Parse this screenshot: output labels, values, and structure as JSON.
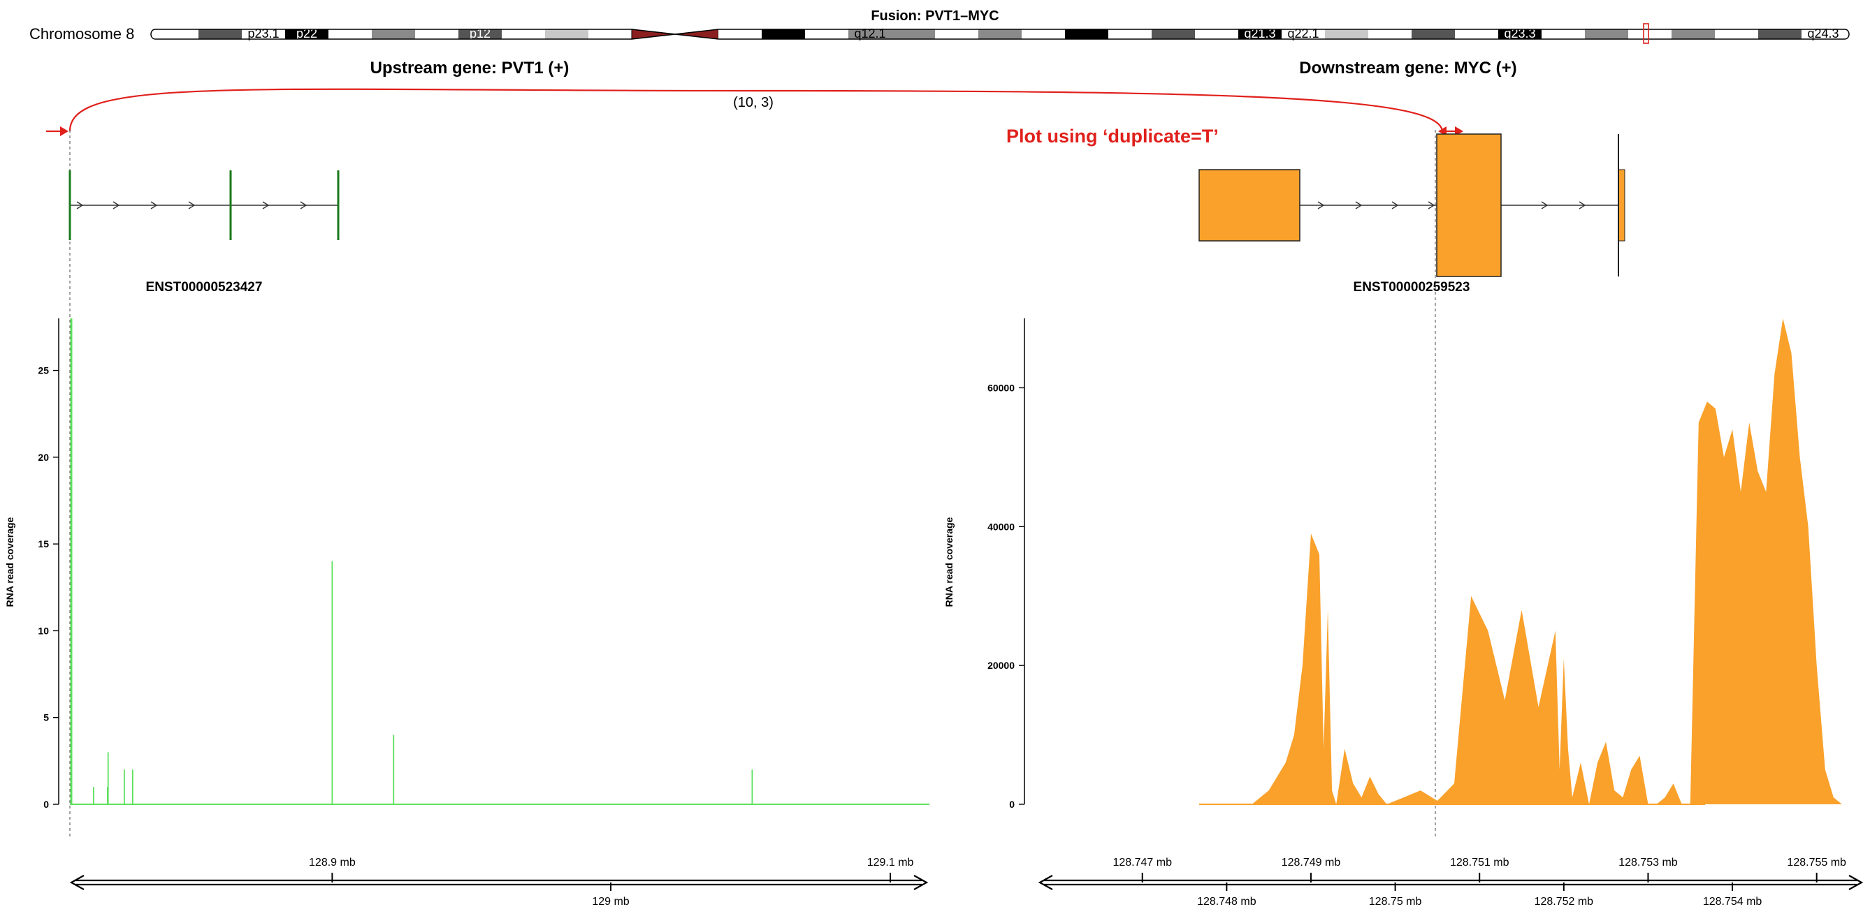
{
  "figure": {
    "fusion_title": "Fusion: PVT1–MYC",
    "chromosome_label": "Chromosome 8",
    "upstream_title": "Upstream gene: PVT1 (+)",
    "downstream_title": "Downstream gene: MYC (+)",
    "junction_label": "(10, 3)",
    "annotation": "Plot using ‘duplicate=T’",
    "upstream_transcript": "ENST00000523427",
    "downstream_transcript": "ENST00000259523",
    "colors": {
      "upstream": "#1a7a1a",
      "upstream_coverage": "#5ee05e",
      "downstream": "#f9a12b",
      "fusion_arc": "#e0201b",
      "centromere": "#8b1f1f"
    }
  },
  "ideogram": {
    "bands": [
      {
        "label": "",
        "stain": "white"
      },
      {
        "label": "",
        "stain": "gpos75"
      },
      {
        "label": "p23.1",
        "stain": "white"
      },
      {
        "label": "p22",
        "stain": "gpos100"
      },
      {
        "label": "",
        "stain": "white"
      },
      {
        "label": "",
        "stain": "gpos50"
      },
      {
        "label": "",
        "stain": "white"
      },
      {
        "label": "p12",
        "stain": "gpos75"
      },
      {
        "label": "",
        "stain": "white"
      },
      {
        "label": "",
        "stain": "gpos25"
      },
      {
        "label": "",
        "stain": "white"
      },
      {
        "label": "",
        "stain": "acen"
      },
      {
        "label": "",
        "stain": "acen"
      },
      {
        "label": "",
        "stain": "white"
      },
      {
        "label": "",
        "stain": "gpos100"
      },
      {
        "label": "",
        "stain": "white"
      },
      {
        "label": "q12.1",
        "stain": "gpos50"
      },
      {
        "label": "",
        "stain": "gpos50"
      },
      {
        "label": "",
        "stain": "white"
      },
      {
        "label": "",
        "stain": "gpos50"
      },
      {
        "label": "",
        "stain": "white"
      },
      {
        "label": "",
        "stain": "gpos100"
      },
      {
        "label": "",
        "stain": "white"
      },
      {
        "label": "",
        "stain": "gpos75"
      },
      {
        "label": "",
        "stain": "white"
      },
      {
        "label": "q21.3",
        "stain": "gpos100"
      },
      {
        "label": "q22.1",
        "stain": "white"
      },
      {
        "label": "",
        "stain": "gpos25"
      },
      {
        "label": "",
        "stain": "white"
      },
      {
        "label": "",
        "stain": "gpos75"
      },
      {
        "label": "",
        "stain": "white"
      },
      {
        "label": "q23.3",
        "stain": "gpos100"
      },
      {
        "label": "",
        "stain": "white"
      },
      {
        "label": "",
        "stain": "gpos50"
      },
      {
        "label": "",
        "stain": "white"
      },
      {
        "label": "",
        "stain": "gpos50"
      },
      {
        "label": "",
        "stain": "white"
      },
      {
        "label": "",
        "stain": "gpos75"
      },
      {
        "label": "q24.3",
        "stain": "white"
      }
    ]
  },
  "chart_data": [
    {
      "type": "bar",
      "panel": "upstream",
      "ylabel": "RNA read coverage",
      "ylim": [
        0,
        28
      ],
      "y_ticks": [
        0,
        5,
        10,
        15,
        20,
        25
      ],
      "x_ticks": [
        {
          "label": "128.9 mb",
          "value": 128.9
        },
        {
          "label": "129.1 mb",
          "value": 129.1
        }
      ],
      "axis_label": "129 mb",
      "xlim": [
        128.806,
        129.114
      ],
      "coverage_peaks": [
        {
          "x": 128.8065,
          "y": 28
        },
        {
          "x": 128.8145,
          "y": 1
        },
        {
          "x": 128.8195,
          "y": 1
        },
        {
          "x": 128.8197,
          "y": 3
        },
        {
          "x": 128.8255,
          "y": 2
        },
        {
          "x": 128.8285,
          "y": 2
        },
        {
          "x": 128.9,
          "y": 14
        },
        {
          "x": 128.922,
          "y": 4
        },
        {
          "x": 129.0505,
          "y": 2
        }
      ],
      "exons": [
        {
          "start": 128.806
        },
        {
          "start": 128.864
        },
        {
          "start": 128.903
        }
      ]
    },
    {
      "type": "area",
      "panel": "downstream",
      "ylabel": "RNA read coverage",
      "ylim": [
        0,
        70000
      ],
      "y_ticks": [
        0,
        20000,
        40000,
        60000
      ],
      "x_ticks_top": [
        {
          "label": "128.747 mb",
          "value": 128.747
        },
        {
          "label": "128.749 mb",
          "value": 128.749
        },
        {
          "label": "128.751 mb",
          "value": 128.751
        },
        {
          "label": "128.753 mb",
          "value": 128.753
        },
        {
          "label": "128.755 mb",
          "value": 128.755
        }
      ],
      "x_ticks_bottom": [
        {
          "label": "128.748 mb",
          "value": 128.748
        },
        {
          "label": "128.75 mb",
          "value": 128.75
        },
        {
          "label": "128.752 mb",
          "value": 128.752
        },
        {
          "label": "128.754 mb",
          "value": 128.754
        }
      ],
      "xlim": [
        128.7458,
        128.7555
      ],
      "x": [
        128.7478,
        128.7483,
        128.7485,
        128.7487,
        128.7488,
        128.7489,
        128.749,
        128.7491,
        128.74915,
        128.7492,
        128.74925,
        128.7493,
        128.7494,
        128.7495,
        128.7496,
        128.7497,
        128.7498,
        128.7499,
        128.7501,
        128.7503,
        128.7505,
        128.7507,
        128.7509,
        128.7511,
        128.7513,
        128.7515,
        128.7517,
        128.7519,
        128.75195,
        128.752,
        128.75205,
        128.7521,
        128.7522,
        128.7523,
        128.7524,
        128.7525,
        128.7526,
        128.7527,
        128.7528,
        128.7529,
        128.753,
        128.7531,
        128.7532,
        128.7533,
        128.7534,
        128.7535,
        128.7536,
        128.7537,
        128.7538,
        128.7539,
        128.754,
        128.7541,
        128.7542,
        128.7543,
        128.7544,
        128.7545,
        128.7546,
        128.7547,
        128.7548,
        128.7549,
        128.755,
        128.7551,
        128.7552,
        128.7553,
        128.7554,
        128.7555,
        128.7556,
        128.7557,
        128.7558,
        128.7559,
        128.7561,
        128.7563
      ],
      "values": [
        0,
        0,
        2000,
        6000,
        10000,
        20000,
        39000,
        36000,
        8000,
        28000,
        2000,
        0,
        8000,
        3000,
        1000,
        4000,
        1500,
        0,
        1000,
        2000,
        500,
        3000,
        30000,
        25000,
        15000,
        28000,
        14000,
        25000,
        5000,
        21000,
        8000,
        1000,
        6000,
        0,
        6000,
        9000,
        2000,
        1000,
        5000,
        7000,
        0,
        0,
        1000,
        3000,
        0,
        0,
        55000,
        58000,
        57000,
        50000,
        54000,
        45000,
        55000,
        48000,
        45000,
        62000,
        70000,
        65000,
        50000,
        40000,
        20000,
        5000,
        1000,
        0,
        0,
        0,
        0,
        0,
        0,
        0,
        0,
        0
      ],
      "transcript_exons": [
        {
          "start": 128.7478,
          "end": 128.7484
        },
        {
          "start": 128.7506,
          "end": 128.751
        },
        {
          "start": 128.7513,
          "end": 128.75135
        }
      ]
    }
  ]
}
